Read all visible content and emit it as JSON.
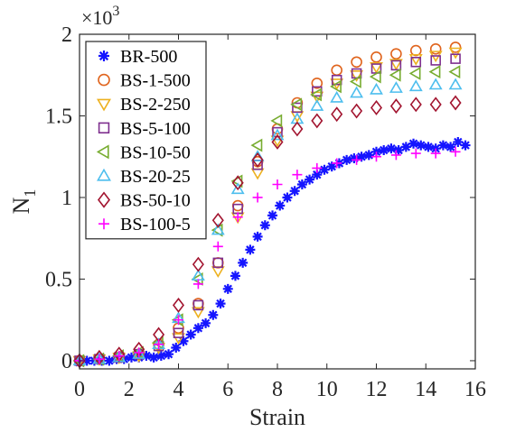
{
  "chart_data": {
    "type": "scatter",
    "xlabel": "Strain",
    "ylabel": "N",
    "ylabel_sub": "1",
    "y_multiplier": "×10",
    "y_multiplier_exp": "3",
    "xlim": [
      0,
      16
    ],
    "ylim": [
      -0.05,
      2
    ],
    "xticks": [
      "0",
      "2",
      "4",
      "6",
      "8",
      "10",
      "12",
      "14",
      "16"
    ],
    "yticks": [
      "0",
      "0.5",
      "1",
      "1.5",
      "2"
    ],
    "grid": false,
    "legend_position": "top-left",
    "series": [
      {
        "name": "BR-500",
        "marker": "asterisk",
        "color": "#1515ff",
        "x": [
          0,
          0.3,
          0.6,
          0.9,
          1.2,
          1.5,
          1.8,
          2.1,
          2.4,
          2.7,
          3.0,
          3.3,
          3.6,
          3.9,
          4.2,
          4.5,
          4.8,
          5.1,
          5.4,
          5.7,
          6.0,
          6.3,
          6.6,
          6.9,
          7.2,
          7.5,
          7.8,
          8.1,
          8.4,
          8.7,
          9.0,
          9.3,
          9.6,
          9.9,
          10.2,
          10.5,
          10.8,
          11.1,
          11.4,
          11.7,
          12.0,
          12.3,
          12.6,
          12.9,
          13.2,
          13.5,
          13.8,
          14.1,
          14.4,
          14.7,
          15.0,
          15.3,
          15.6
        ],
        "y": [
          -0.01,
          0.0,
          0.0,
          0.0,
          0.0,
          0.01,
          0.01,
          0.02,
          0.02,
          0.03,
          0.02,
          0.03,
          0.04,
          0.08,
          0.12,
          0.16,
          0.2,
          0.23,
          0.28,
          0.35,
          0.44,
          0.52,
          0.6,
          0.68,
          0.76,
          0.83,
          0.89,
          0.95,
          1.0,
          1.04,
          1.08,
          1.11,
          1.14,
          1.17,
          1.19,
          1.21,
          1.23,
          1.24,
          1.25,
          1.26,
          1.28,
          1.29,
          1.3,
          1.29,
          1.31,
          1.33,
          1.32,
          1.31,
          1.3,
          1.32,
          1.31,
          1.34,
          1.32
        ]
      },
      {
        "name": "BS-1-500",
        "marker": "circle",
        "color": "#e0641d",
        "x": [
          0,
          0.8,
          1.6,
          2.4,
          3.2,
          4.0,
          4.8,
          5.6,
          6.4,
          7.2,
          8.0,
          8.8,
          9.6,
          10.4,
          11.2,
          12.0,
          12.8,
          13.6,
          14.4,
          15.2
        ],
        "y": [
          0.0,
          0.01,
          0.02,
          0.04,
          0.1,
          0.2,
          0.35,
          0.6,
          0.95,
          1.22,
          1.42,
          1.58,
          1.7,
          1.78,
          1.83,
          1.86,
          1.88,
          1.9,
          1.91,
          1.92
        ]
      },
      {
        "name": "BS-2-250",
        "marker": "triangle-down",
        "color": "#edb120",
        "x": [
          0,
          0.8,
          1.6,
          2.4,
          3.2,
          4.0,
          4.8,
          5.6,
          6.4,
          7.2,
          8.0,
          8.8,
          9.6,
          10.4,
          11.2,
          12.0,
          12.8,
          13.6,
          14.4,
          15.2
        ],
        "y": [
          0.0,
          0.01,
          0.02,
          0.03,
          0.08,
          0.14,
          0.3,
          0.55,
          0.88,
          1.15,
          1.35,
          1.5,
          1.62,
          1.7,
          1.75,
          1.8,
          1.82,
          1.85,
          1.87,
          1.89
        ]
      },
      {
        "name": "BS-5-100",
        "marker": "square",
        "color": "#7e2f8e",
        "x": [
          0,
          0.8,
          1.6,
          2.4,
          3.2,
          4.0,
          4.8,
          5.6,
          6.4,
          7.2,
          8.0,
          8.8,
          9.6,
          10.4,
          11.2,
          12.0,
          12.8,
          13.6,
          14.4,
          15.2
        ],
        "y": [
          0.0,
          0.01,
          0.02,
          0.04,
          0.09,
          0.17,
          0.34,
          0.6,
          0.93,
          1.2,
          1.4,
          1.55,
          1.65,
          1.72,
          1.76,
          1.79,
          1.81,
          1.83,
          1.84,
          1.85
        ]
      },
      {
        "name": "BS-10-50",
        "marker": "triangle-left",
        "color": "#77ac30",
        "x": [
          0,
          0.8,
          1.6,
          2.4,
          3.2,
          4.0,
          4.8,
          5.6,
          6.4,
          7.2,
          8.0,
          8.8,
          9.6,
          10.4,
          11.2,
          12.0,
          12.8,
          13.6,
          14.4,
          15.2
        ],
        "y": [
          0.0,
          0.01,
          0.03,
          0.05,
          0.11,
          0.25,
          0.5,
          0.8,
          1.1,
          1.32,
          1.47,
          1.57,
          1.63,
          1.68,
          1.71,
          1.74,
          1.75,
          1.76,
          1.77,
          1.77
        ]
      },
      {
        "name": "BS-20-25",
        "marker": "triangle-up",
        "color": "#4dbeee",
        "x": [
          0,
          0.8,
          1.6,
          2.4,
          3.2,
          4.0,
          4.8,
          5.6,
          6.4,
          7.2,
          8.0,
          8.8,
          9.6,
          10.4,
          11.2,
          12.0,
          12.8,
          13.6,
          14.4,
          15.2
        ],
        "y": [
          0.0,
          0.01,
          0.02,
          0.04,
          0.1,
          0.26,
          0.52,
          0.8,
          1.05,
          1.25,
          1.38,
          1.48,
          1.56,
          1.61,
          1.64,
          1.66,
          1.67,
          1.68,
          1.69,
          1.69
        ]
      },
      {
        "name": "BS-50-10",
        "marker": "diamond",
        "color": "#a2142f",
        "x": [
          0,
          0.8,
          1.6,
          2.4,
          3.2,
          4.0,
          4.8,
          5.6,
          6.4,
          7.2,
          8.0,
          8.8,
          9.6,
          10.4,
          11.2,
          12.0,
          12.8,
          13.6,
          14.4,
          15.2
        ],
        "y": [
          0.0,
          0.02,
          0.04,
          0.07,
          0.16,
          0.34,
          0.59,
          0.86,
          1.09,
          1.23,
          1.34,
          1.42,
          1.47,
          1.51,
          1.53,
          1.55,
          1.56,
          1.57,
          1.57,
          1.58
        ]
      },
      {
        "name": "BS-100-5",
        "marker": "plus",
        "color": "#ff00ff",
        "x": [
          0,
          0.8,
          1.6,
          2.4,
          3.2,
          4.0,
          4.8,
          5.6,
          6.4,
          7.2,
          8.0,
          8.8,
          9.6,
          10.4,
          11.2,
          12.0,
          12.8,
          13.6,
          14.4,
          15.2
        ],
        "y": [
          0.0,
          0.01,
          0.03,
          0.05,
          0.1,
          0.25,
          0.47,
          0.7,
          0.88,
          1.0,
          1.08,
          1.14,
          1.18,
          1.21,
          1.23,
          1.25,
          1.26,
          1.27,
          1.27,
          1.28
        ]
      }
    ]
  }
}
